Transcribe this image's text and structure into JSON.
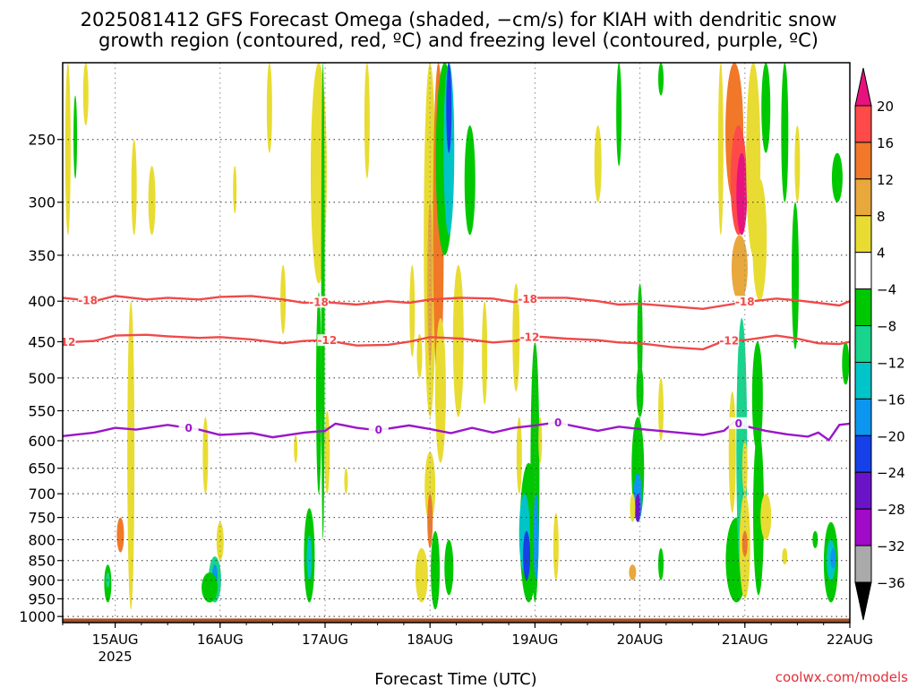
{
  "title_line1": "2025081412 GFS Forecast Omega (shaded, −cm/s) for KIAH with dendritic snow",
  "title_line2": "growth region (contoured, red, ºC) and freezing level (contoured, purple, ºC)",
  "credit": "coolwx.com/models",
  "colors": {
    "dgz_contour": "#f04a4a",
    "freezing_contour": "#9a16c9",
    "ground": "#a55028"
  },
  "colorbar": {
    "tick_labels": [
      "20",
      "16",
      "12",
      "8",
      "4",
      "−4",
      "−8",
      "−12",
      "−16",
      "−20",
      "−24",
      "−28",
      "−32",
      "−36"
    ],
    "fill_colors": [
      "#e8127e",
      "#ff4a4a",
      "#f07828",
      "#e8a83c",
      "#e8dc32",
      "#ffffff",
      "#00c800",
      "#18d48c",
      "#00c4c8",
      "#0c96f0",
      "#1640e8",
      "#6a14c8",
      "#a00ac8",
      "#aaaaaa",
      "#000000"
    ]
  },
  "chart_data": {
    "type": "heatmap",
    "title": "2025081412 GFS Forecast Omega (shaded, −cm/s) for KIAH with dendritic snow growth region (contoured, red, ºC) and freezing level (contoured, purple, ºC)",
    "xlabel": "Forecast Time (UTC)",
    "ylabel": "",
    "x_ticks": [
      "15AUG",
      "16AUG",
      "17AUG",
      "18AUG",
      "19AUG",
      "20AUG",
      "21AUG",
      "22AUG"
    ],
    "x_tick_sublabel": "2025",
    "y_ticks": [
      250,
      300,
      350,
      400,
      450,
      500,
      550,
      600,
      650,
      700,
      750,
      800,
      850,
      900,
      950,
      1000
    ],
    "y_scale": "log",
    "ylim": [
      1018,
      200
    ],
    "xlim_days": [
      14.5,
      22.0
    ],
    "grid": true,
    "contour_labels": {
      "dgz_upper": "-18",
      "dgz_lower": "-12",
      "freezing": "0"
    },
    "contours": [
      {
        "name": "-18",
        "x": [
          14.5,
          14.8,
          15.0,
          15.3,
          15.5,
          15.8,
          16.0,
          16.3,
          16.6,
          16.8,
          17.0,
          17.3,
          17.6,
          17.8,
          18.0,
          18.3,
          18.6,
          18.8,
          19.0,
          19.3,
          19.6,
          19.8,
          20.0,
          20.3,
          20.6,
          20.8,
          21.0,
          21.3,
          21.5,
          21.7,
          21.9,
          22.0
        ],
        "y": [
          396,
          400,
          394,
          398,
          396,
          398,
          395,
          394,
          398,
          402,
          401,
          404,
          400,
          402,
          398,
          396,
          397,
          401,
          396,
          396,
          400,
          404,
          403,
          406,
          409,
          405,
          401,
          397,
          399,
          402,
          405,
          400
        ],
        "labels_at": [
          14.74,
          16.94,
          18.93,
          21.0
        ]
      },
      {
        "name": "-12",
        "x": [
          14.5,
          14.8,
          15.0,
          15.3,
          15.5,
          15.8,
          16.0,
          16.3,
          16.6,
          16.8,
          17.0,
          17.3,
          17.6,
          17.8,
          18.0,
          18.3,
          18.6,
          18.8,
          19.0,
          19.3,
          19.6,
          19.8,
          20.0,
          20.3,
          20.6,
          20.8,
          21.0,
          21.3,
          21.5,
          21.7,
          21.9,
          22.0
        ],
        "y": [
          451,
          449,
          442,
          441,
          443,
          445,
          444,
          447,
          452,
          449,
          448,
          455,
          454,
          450,
          444,
          446,
          451,
          449,
          443,
          446,
          448,
          451,
          452,
          457,
          460,
          449,
          448,
          442,
          446,
          452,
          453,
          450
        ],
        "labels_at": [
          14.53,
          17.02,
          18.95,
          20.85
        ]
      },
      {
        "name": "0",
        "x": [
          14.5,
          14.8,
          15.0,
          15.2,
          15.5,
          15.8,
          16.0,
          16.3,
          16.5,
          16.8,
          17.0,
          17.1,
          17.3,
          17.5,
          17.8,
          18.0,
          18.2,
          18.4,
          18.6,
          18.8,
          19.0,
          19.2,
          19.4,
          19.6,
          19.8,
          20.0,
          20.3,
          20.6,
          20.8,
          20.9,
          21.0,
          21.2,
          21.4,
          21.6,
          21.7,
          21.8,
          21.9,
          22.0
        ],
        "y": [
          592,
          586,
          578,
          581,
          573,
          581,
          590,
          587,
          594,
          586,
          583,
          571,
          578,
          582,
          574,
          580,
          587,
          578,
          586,
          578,
          574,
          569,
          576,
          583,
          576,
          580,
          585,
          590,
          583,
          568,
          575,
          583,
          589,
          593,
          586,
          599,
          573,
          571
        ],
        "labels_at": [
          15.7,
          17.51,
          19.22,
          20.94
        ]
      }
    ]
  },
  "axis": {
    "x_labels": [
      "15AUG",
      "16AUG",
      "17AUG",
      "18AUG",
      "19AUG",
      "20AUG",
      "21AUG",
      "22AUG"
    ],
    "x_sublabel": "2025",
    "y_labels": [
      "250",
      "300",
      "350",
      "400",
      "450",
      "500",
      "550",
      "600",
      "650",
      "700",
      "750",
      "800",
      "850",
      "900",
      "950",
      "1000"
    ],
    "xlabel": "Forecast Time (UTC)"
  }
}
